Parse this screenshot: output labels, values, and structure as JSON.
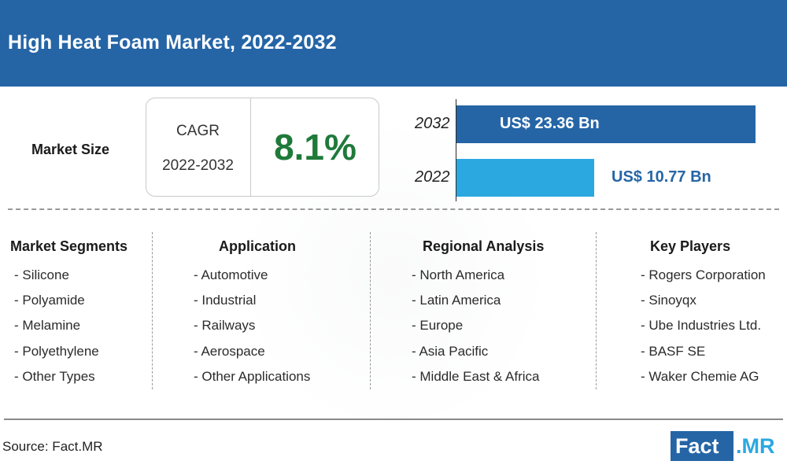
{
  "header": {
    "title": "High Heat Foam Market, 2022-2032"
  },
  "market_size": {
    "label": "Market Size",
    "cagr_label": "CAGR",
    "cagr_period": "2022-2032",
    "cagr_value": "8.1%"
  },
  "chart_data": {
    "type": "bar",
    "orientation": "horizontal",
    "categories": [
      "2032",
      "2022"
    ],
    "values": [
      23.36,
      10.77
    ],
    "value_labels": [
      "US$ 23.36 Bn",
      "US$ 10.77 Bn"
    ],
    "colors": [
      "#2565a6",
      "#2ba8e0"
    ],
    "xlim": [
      0,
      23.36
    ],
    "title": "",
    "xlabel": "",
    "ylabel": ""
  },
  "columns": [
    {
      "heading": "Market Segments",
      "items": [
        "- Silicone",
        "- Polyamide",
        "- Melamine",
        "- Polyethylene",
        "- Other Types"
      ]
    },
    {
      "heading": "Application",
      "items": [
        "- Automotive",
        "- Industrial",
        "- Railways",
        "- Aerospace",
        "- Other Applications"
      ]
    },
    {
      "heading": "Regional Analysis",
      "items": [
        "- North America",
        "- Latin America",
        "- Europe",
        "- Asia Pacific",
        "- Middle East & Africa"
      ]
    },
    {
      "heading": "Key Players",
      "items": [
        "- Rogers Corporation",
        "- Sinoyqx",
        "- Ube Industries Ltd.",
        "- BASF SE",
        "- Waker Chemie AG"
      ]
    }
  ],
  "footer": {
    "source": "Source: Fact.MR",
    "logo_fact": "Fact",
    "logo_mr": ".MR"
  },
  "colors": {
    "header": "#2565a6",
    "cagr_value": "#1f7a3a",
    "bar_2032": "#2565a6",
    "bar_2022": "#2ba8e0"
  }
}
